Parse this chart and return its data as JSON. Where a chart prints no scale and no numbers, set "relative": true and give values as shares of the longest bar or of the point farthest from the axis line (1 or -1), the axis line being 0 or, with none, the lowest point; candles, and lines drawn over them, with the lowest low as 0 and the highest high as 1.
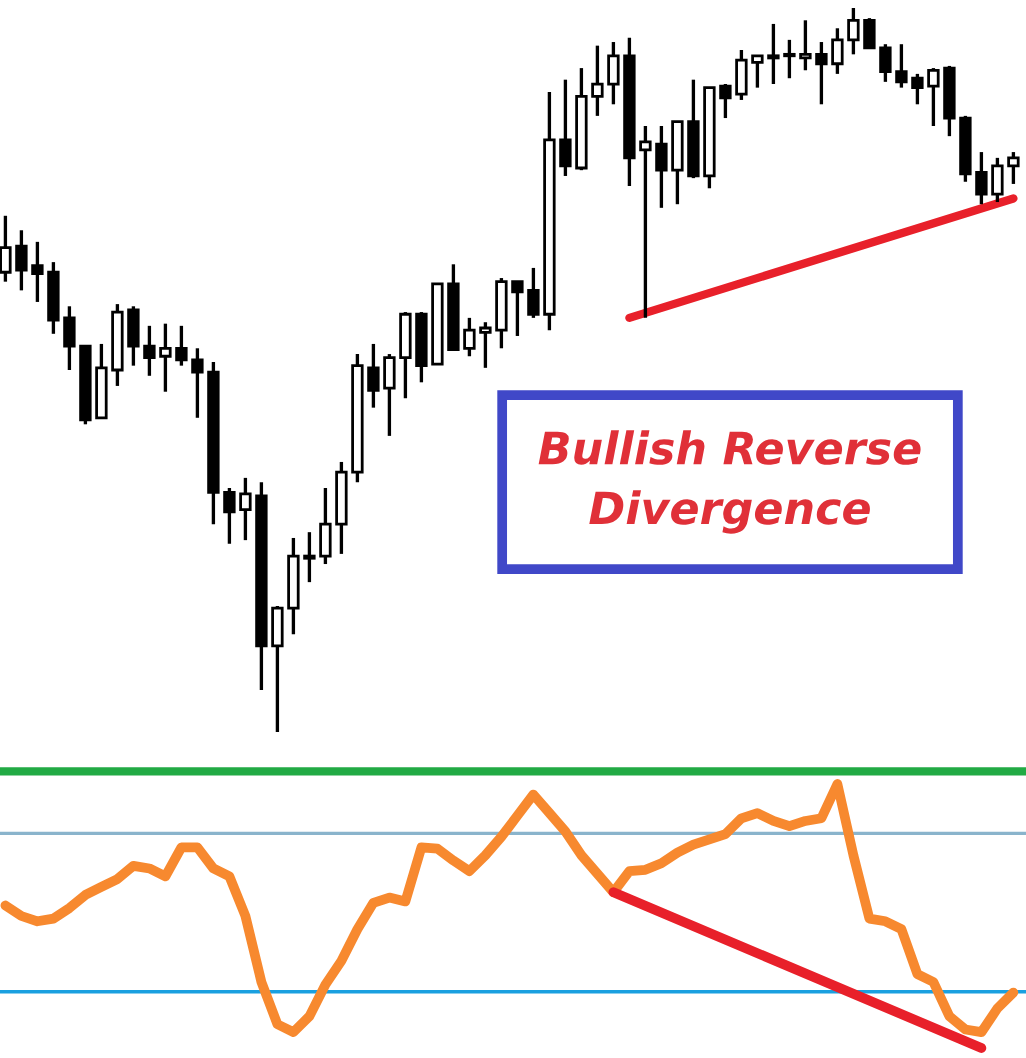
{
  "chart_data": [
    {
      "type": "candlestick",
      "relative": true,
      "tick_labels": false,
      "categories": [
        null,
        null,
        null,
        null,
        null,
        null,
        null,
        null,
        null,
        null,
        null,
        null,
        null,
        null,
        null,
        null,
        null,
        null,
        null,
        null,
        null,
        null,
        null,
        null,
        null,
        null,
        null,
        null,
        null,
        null,
        null,
        null,
        null,
        null,
        null,
        null,
        null,
        null,
        null,
        null,
        null,
        null,
        null,
        null,
        null,
        null,
        null,
        null,
        null,
        null,
        null,
        null,
        null,
        null,
        null,
        null,
        null,
        null,
        null,
        null,
        null,
        null,
        null,
        null
      ],
      "ohlc": [
        [
          0.635,
          0.713,
          0.622,
          0.669
        ],
        [
          0.671,
          0.693,
          0.61,
          0.638
        ],
        [
          0.644,
          0.677,
          0.594,
          0.633
        ],
        [
          0.635,
          0.649,
          0.55,
          0.569
        ],
        [
          0.572,
          0.588,
          0.5,
          0.533
        ],
        [
          0.533,
          0.533,
          0.425,
          0.431
        ],
        [
          0.434,
          0.536,
          0.434,
          0.503
        ],
        [
          0.5,
          0.591,
          0.478,
          0.58
        ],
        [
          0.583,
          0.588,
          0.506,
          0.533
        ],
        [
          0.533,
          0.561,
          0.492,
          0.517
        ],
        [
          0.519,
          0.564,
          0.47,
          0.53
        ],
        [
          0.53,
          0.561,
          0.506,
          0.514
        ],
        [
          0.514,
          0.53,
          0.434,
          0.497
        ],
        [
          0.497,
          0.511,
          0.287,
          0.331
        ],
        [
          0.331,
          0.337,
          0.26,
          0.304
        ],
        [
          0.307,
          0.351,
          0.265,
          0.329
        ],
        [
          0.326,
          0.345,
          0.058,
          0.119
        ],
        [
          0.119,
          0.174,
          0,
          0.171
        ],
        [
          0.171,
          0.268,
          0.135,
          0.243
        ],
        [
          0.24,
          0.276,
          0.207,
          0.243
        ],
        [
          0.243,
          0.337,
          0.232,
          0.287
        ],
        [
          0.287,
          0.373,
          0.246,
          0.359
        ],
        [
          0.359,
          0.522,
          0.345,
          0.506
        ],
        [
          0.503,
          0.536,
          0.448,
          0.472
        ],
        [
          0.475,
          0.522,
          0.409,
          0.517
        ],
        [
          0.517,
          0.58,
          0.461,
          0.577
        ],
        [
          0.577,
          0.58,
          0.483,
          0.506
        ],
        [
          0.508,
          0.619,
          0.508,
          0.619
        ],
        [
          0.619,
          0.646,
          0.528,
          0.528
        ],
        [
          0.53,
          0.572,
          0.519,
          0.555
        ],
        [
          0.552,
          0.566,
          0.503,
          0.558
        ],
        [
          0.555,
          0.627,
          0.53,
          0.622
        ],
        [
          0.622,
          0.622,
          0.547,
          0.608
        ],
        [
          0.61,
          0.641,
          0.572,
          0.577
        ],
        [
          0.577,
          0.884,
          0.555,
          0.818
        ],
        [
          0.818,
          0.901,
          0.768,
          0.782
        ],
        [
          0.779,
          0.917,
          0.776,
          0.878
        ],
        [
          0.878,
          0.948,
          0.851,
          0.895
        ],
        [
          0.895,
          0.953,
          0.867,
          0.934
        ],
        [
          0.934,
          0.959,
          0.754,
          0.793
        ],
        [
          0.804,
          0.837,
          0.572,
          0.815
        ],
        [
          0.812,
          0.837,
          0.724,
          0.776
        ],
        [
          0.776,
          0.843,
          0.729,
          0.843
        ],
        [
          0.843,
          0.901,
          0.765,
          0.768
        ],
        [
          0.768,
          0.89,
          0.751,
          0.89
        ],
        [
          0.892,
          0.895,
          0.848,
          0.876
        ],
        [
          0.881,
          0.942,
          0.873,
          0.928
        ],
        [
          0.925,
          0.934,
          0.89,
          0.934
        ],
        [
          0.931,
          0.978,
          0.895,
          0.934
        ],
        [
          0.934,
          0.956,
          0.903,
          0.934
        ],
        [
          0.931,
          0.983,
          0.914,
          0.936
        ],
        [
          0.936,
          0.953,
          0.867,
          0.923
        ],
        [
          0.923,
          0.972,
          0.909,
          0.956
        ],
        [
          0.956,
          1,
          0.936,
          0.983
        ],
        [
          0.983,
          0.986,
          0.945,
          0.945
        ],
        [
          0.945,
          0.95,
          0.898,
          0.912
        ],
        [
          0.912,
          0.95,
          0.89,
          0.898
        ],
        [
          0.903,
          0.909,
          0.867,
          0.89
        ],
        [
          0.892,
          0.917,
          0.837,
          0.914
        ],
        [
          0.917,
          0.92,
          0.823,
          0.848
        ],
        [
          0.848,
          0.851,
          0.76,
          0.771
        ],
        [
          0.773,
          0.801,
          0.729,
          0.743
        ],
        [
          0.743,
          0.793,
          0.732,
          0.782
        ],
        [
          0.782,
          0.801,
          0.757,
          0.793
        ]
      ],
      "series": [
        {
          "type": "line",
          "color": "#e8202a",
          "values": [
            null,
            null,
            null,
            null,
            null,
            null,
            null,
            null,
            null,
            null,
            null,
            null,
            null,
            null,
            null,
            null,
            null,
            null,
            null,
            null,
            null,
            null,
            null,
            null,
            null,
            null,
            null,
            null,
            null,
            null,
            null,
            null,
            null,
            null,
            null,
            null,
            null,
            null,
            null,
            0.572,
            null,
            null,
            null,
            null,
            null,
            null,
            null,
            null,
            null,
            null,
            null,
            null,
            null,
            null,
            null,
            null,
            null,
            null,
            null,
            null,
            null,
            null,
            null,
            0.737
          ]
        }
      ],
      "annotations": [
        "Bullish Reverse\nDivergence"
      ]
    },
    {
      "type": "line",
      "relative": true,
      "tick_labels": false,
      "categories": [
        null,
        null,
        null,
        null,
        null,
        null,
        null,
        null,
        null,
        null,
        null,
        null,
        null,
        null,
        null,
        null,
        null,
        null,
        null,
        null,
        null,
        null,
        null,
        null,
        null,
        null,
        null,
        null,
        null,
        null,
        null,
        null,
        null,
        null,
        null,
        null,
        null,
        null,
        null,
        null,
        null,
        null,
        null,
        null,
        null,
        null,
        null,
        null,
        null,
        null,
        null,
        null,
        null,
        null,
        null,
        null,
        null,
        null,
        null,
        null,
        null,
        null,
        null,
        null
      ],
      "series": [
        {
          "color": "#f7892f",
          "values": [
            0.54,
            0.5,
            0.48,
            0.49,
            0.53,
            0.58,
            0.61,
            0.64,
            0.69,
            0.68,
            0.65,
            0.76,
            0.76,
            0.68,
            0.65,
            0.5,
            0.25,
            0.09,
            0.06,
            0.12,
            0.24,
            0.33,
            0.45,
            0.55,
            0.57,
            0.555,
            0.76,
            0.755,
            0.71,
            0.67,
            0.73,
            0.8,
            0.88,
            0.96,
            0.89,
            0.82,
            0.73,
            0.66,
            0.59,
            0.67,
            0.675,
            0.7,
            0.74,
            0.77,
            0.79,
            0.81,
            0.87,
            0.89,
            0.86,
            0.84,
            0.86,
            0.87,
            1.0,
            0.73,
            0.49,
            0.48,
            0.45,
            0.28,
            0.25,
            0.12,
            0.07,
            0.06,
            0.15,
            0.21
          ]
        },
        {
          "color": "#e8202a",
          "values": [
            null,
            null,
            null,
            null,
            null,
            null,
            null,
            null,
            null,
            null,
            null,
            null,
            null,
            null,
            null,
            null,
            null,
            null,
            null,
            null,
            null,
            null,
            null,
            null,
            null,
            null,
            null,
            null,
            null,
            null,
            null,
            null,
            null,
            null,
            null,
            null,
            null,
            null,
            0.59,
            null,
            null,
            null,
            null,
            null,
            null,
            null,
            null,
            null,
            null,
            null,
            null,
            null,
            null,
            null,
            null,
            null,
            null,
            null,
            null,
            null,
            null,
            0,
            null,
            null
          ]
        }
      ],
      "ref_lines": [
        {
          "axis": "y",
          "value": 1.048,
          "color": "#22aa44"
        },
        {
          "axis": "y",
          "value": 0.813,
          "color": "#8ab4cc"
        },
        {
          "axis": "y",
          "value": 0.213,
          "color": "#1aa0e0"
        }
      ]
    }
  ]
}
